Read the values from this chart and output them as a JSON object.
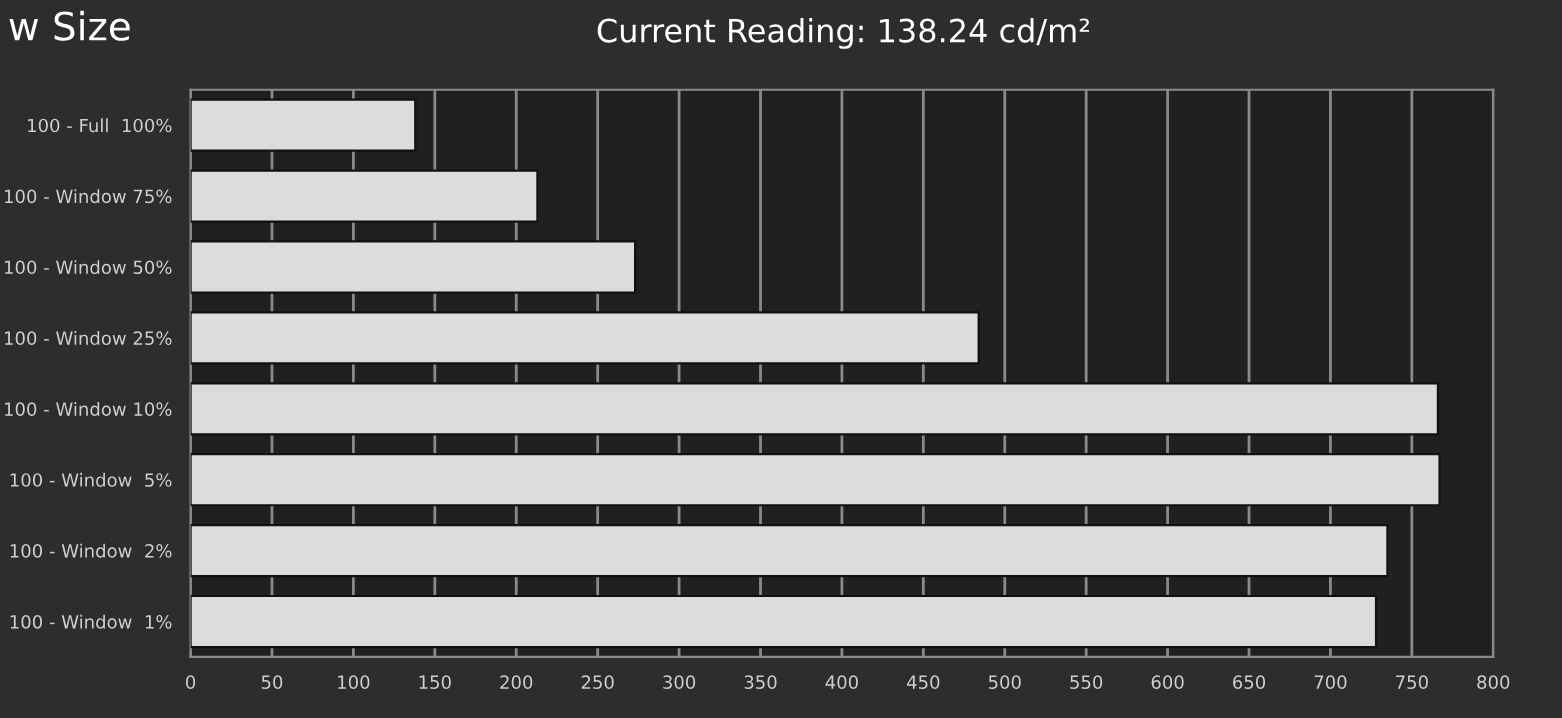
{
  "chart_data": {
    "type": "bar",
    "orientation": "horizontal",
    "title": "w Size",
    "subtitle": "Current Reading: 138.24 cd/m²",
    "categories": [
      "100 - Full  100%",
      "100 - Window 75%",
      "100 - Window 50%",
      "100 - Window 25%",
      "100 - Window 10%",
      "100 - Window  5%",
      "100 - Window  2%",
      "100 - Window  1%"
    ],
    "values": [
      138,
      213,
      273,
      484,
      766,
      767,
      735,
      728
    ],
    "color": "#dcdcdc",
    "xlim": [
      0,
      800
    ],
    "xticks": [
      0,
      50,
      100,
      150,
      200,
      250,
      300,
      350,
      400,
      450,
      500,
      550,
      600,
      650,
      700,
      750,
      800
    ],
    "grid": "x",
    "legend": false
  }
}
